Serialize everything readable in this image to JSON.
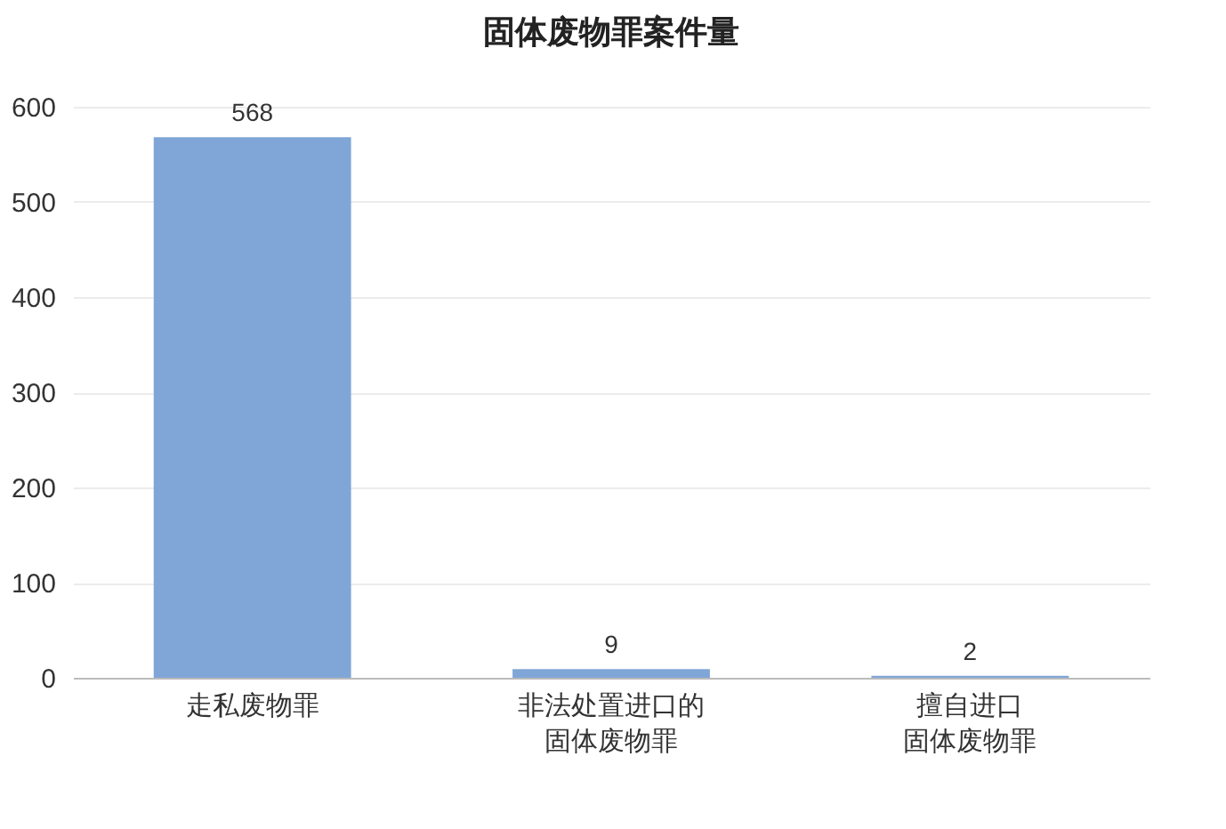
{
  "chart_data": {
    "type": "bar",
    "title": "固体废物罪案件量",
    "categories": [
      "走私废物罪",
      "非法处置进口的固体废物罪",
      "擅自进口固体废物罪"
    ],
    "values": [
      568,
      9,
      2
    ],
    "color": "#7fa6d6",
    "ylim": [
      0,
      600
    ],
    "yticks": [
      0,
      100,
      200,
      300,
      400,
      500,
      600
    ],
    "grid": "y",
    "data_labels": true
  }
}
